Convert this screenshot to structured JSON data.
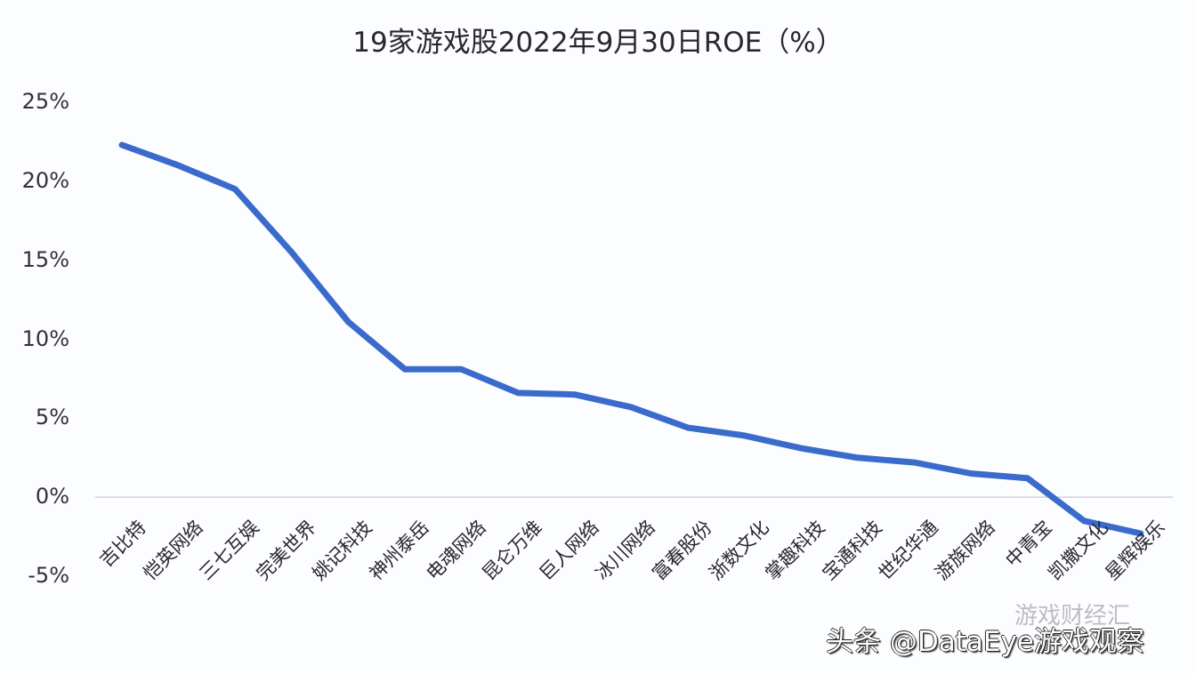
{
  "chart_data": {
    "type": "line",
    "title": "19家游戏股2022年9月30日ROE（%）",
    "xlabel": "",
    "ylabel": "",
    "ylim": [
      -5,
      25
    ],
    "yticks": [
      "25%",
      "20%",
      "15%",
      "10%",
      "5%",
      "0%",
      "-5%"
    ],
    "grid": false,
    "zero_line": true,
    "legend": null,
    "line_color": "#3a6bcc",
    "categories": [
      "吉比特",
      "恺英网络",
      "三七互娱",
      "完美世界",
      "姚记科技",
      "神州泰岳",
      "电魂网络",
      "昆仑万维",
      "巨人网络",
      "冰川网络",
      "富春股份",
      "浙数文化",
      "掌趣科技",
      "宝通科技",
      "世纪华通",
      "游族网络",
      "中青宝",
      "凯撒文化",
      "星辉娱乐"
    ],
    "series": [
      {
        "name": "ROE",
        "values": [
          22.3,
          21.0,
          19.5,
          15.5,
          11.1,
          8.1,
          8.1,
          6.6,
          6.5,
          5.7,
          4.4,
          3.9,
          3.1,
          2.5,
          2.2,
          1.5,
          1.2,
          -1.5,
          -2.3
        ]
      }
    ]
  },
  "watermark": {
    "faint": "游戏财经汇",
    "main": "头条 @DataEye游戏观察"
  }
}
